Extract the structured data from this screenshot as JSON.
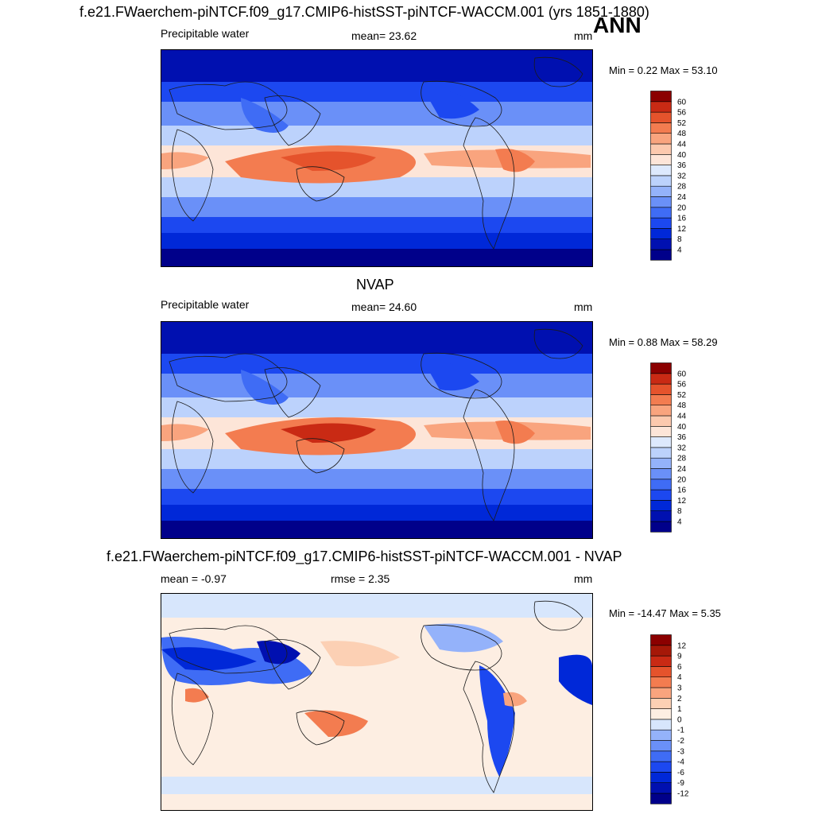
{
  "figure": {
    "title": "f.e21.FWaerchem-piNTCF.f09_g17.CMIP6-histSST-piNTCF-WACCM.001 (yrs 1851-1880)",
    "season": "ANN"
  },
  "panels": [
    {
      "id": "model",
      "title": "",
      "variable": "Precipitable water",
      "stat_text": "mean=  23.62",
      "units": "mm",
      "minmax": "Min =   0.22 Max =  53.10",
      "levels": [
        "4",
        "8",
        "12",
        "16",
        "20",
        "24",
        "28",
        "32",
        "36",
        "40",
        "44",
        "48",
        "52",
        "56",
        "60"
      ],
      "colors": [
        "#00008a",
        "#0010b0",
        "#0028d8",
        "#1c48f0",
        "#3f6cf5",
        "#6a90f8",
        "#94b2fa",
        "#bcd2fc",
        "#dde9fd",
        "#fde5d8",
        "#fcc9ae",
        "#f9a47e",
        "#f37c50",
        "#e5532c",
        "#c92a14",
        "#8b0000"
      ]
    },
    {
      "id": "obs",
      "title": "NVAP",
      "variable": "Precipitable water",
      "stat_text": "mean=  24.60",
      "units": "mm",
      "minmax": "Min =   0.88 Max =  58.29",
      "levels": [
        "4",
        "8",
        "12",
        "16",
        "20",
        "24",
        "28",
        "32",
        "36",
        "40",
        "44",
        "48",
        "52",
        "56",
        "60"
      ],
      "colors": [
        "#00008a",
        "#0010b0",
        "#0028d8",
        "#1c48f0",
        "#3f6cf5",
        "#6a90f8",
        "#94b2fa",
        "#bcd2fc",
        "#dde9fd",
        "#fde5d8",
        "#fcc9ae",
        "#f9a47e",
        "#f37c50",
        "#e5532c",
        "#c92a14",
        "#8b0000"
      ]
    },
    {
      "id": "diff",
      "title": "f.e21.FWaerchem-piNTCF.f09_g17.CMIP6-histSST-piNTCF-WACCM.001 - NVAP",
      "variable": "mean =  -0.97",
      "stat_text": "rmse =   2.35",
      "units": "mm",
      "minmax": "Min = -14.47 Max =   5.35",
      "levels": [
        "-12",
        "-9",
        "-6",
        "-4",
        "-3",
        "-2",
        "-1",
        "0",
        "1",
        "2",
        "3",
        "4",
        "6",
        "9",
        "12"
      ],
      "colors": [
        "#00008a",
        "#0010b0",
        "#0028d8",
        "#1c48f0",
        "#3f6cf5",
        "#6a90f8",
        "#94b2fa",
        "#d7e6fc",
        "#fdeee2",
        "#fcd0b4",
        "#f9a47e",
        "#f37c50",
        "#e5532c",
        "#c92a14",
        "#a51808",
        "#8b0000"
      ]
    }
  ]
}
